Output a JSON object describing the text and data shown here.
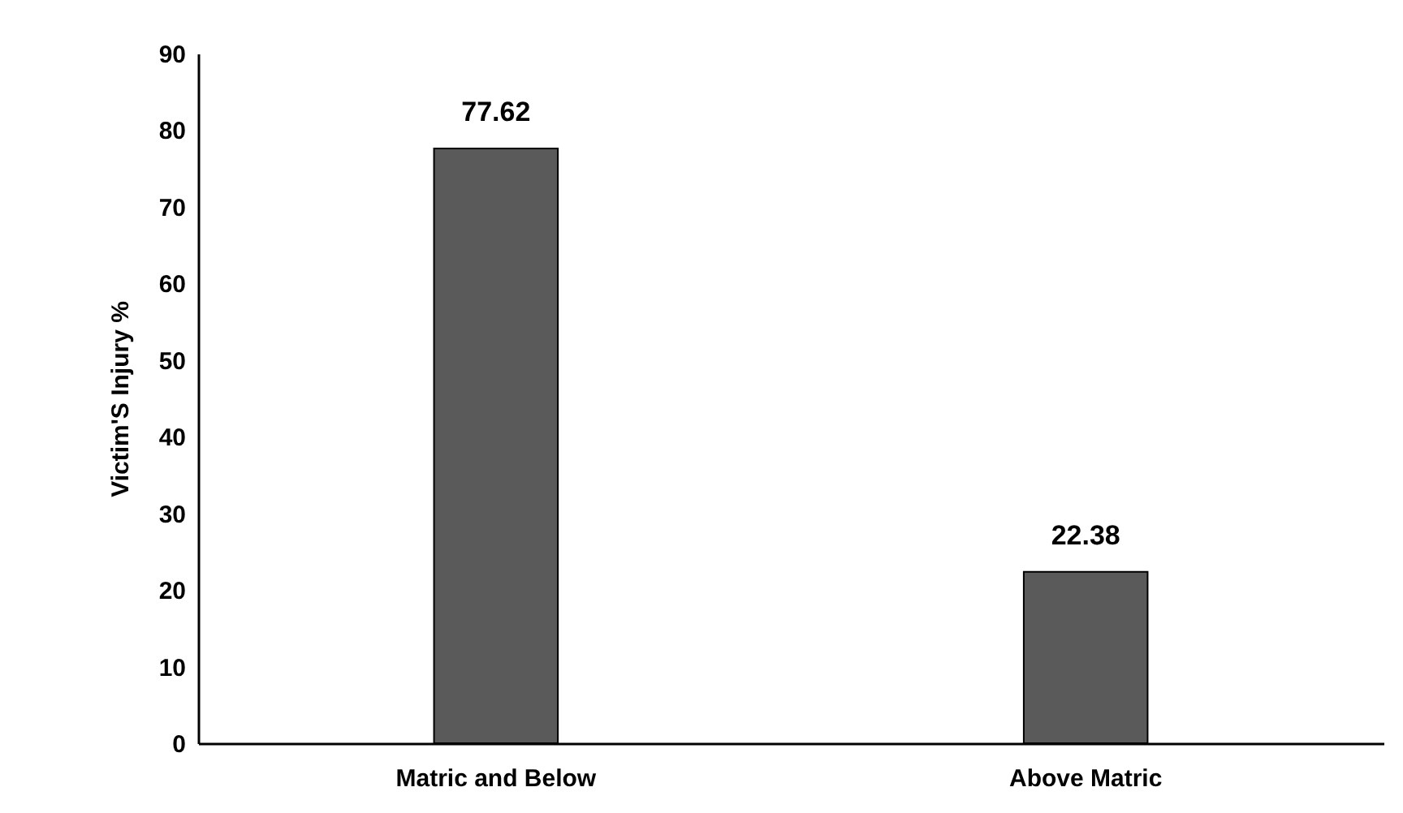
{
  "chart_data": {
    "type": "bar",
    "ylabel": "Victim'S Injury %",
    "categories": [
      "Matric and Below",
      "Above Matric"
    ],
    "values": [
      77.62,
      22.38
    ],
    "color": "#5a5a5a",
    "ylim": [
      0,
      90
    ],
    "yticks": [
      0,
      10,
      20,
      30,
      40,
      50,
      60,
      70,
      80,
      90
    ],
    "grid": false,
    "data_labels": true
  }
}
